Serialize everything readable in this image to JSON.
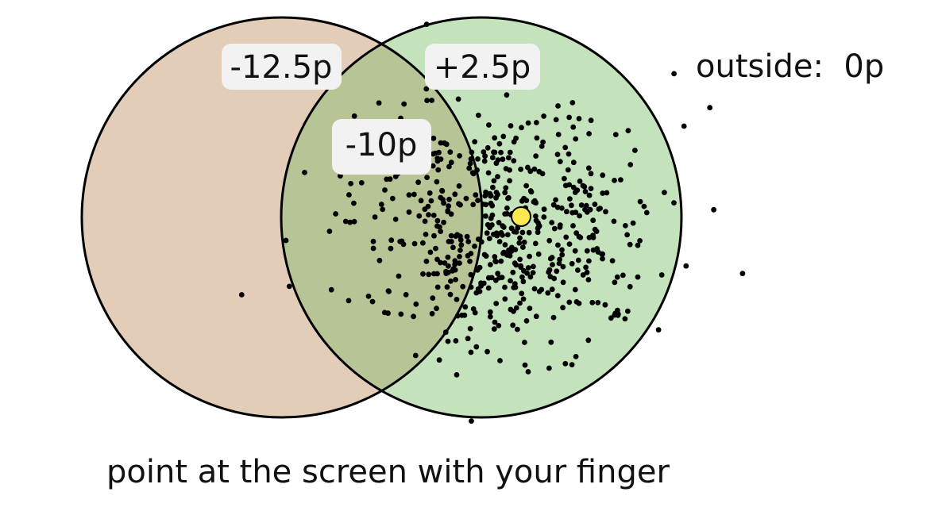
{
  "labels": {
    "left_only": "-12.5p",
    "right_only": "+2.5p",
    "overlap": "-10p",
    "outside": "outside:  0p"
  },
  "instruction": "point at the screen with your finger",
  "colors": {
    "left_circle_fill": "#e3cdb9",
    "right_circle_fill": "#c4e3bd",
    "overlap_fill": "#b6c496",
    "outline": "#000000",
    "points": "#000000",
    "target_point": "#fce94f",
    "label_box": "#f2f2f2"
  }
}
